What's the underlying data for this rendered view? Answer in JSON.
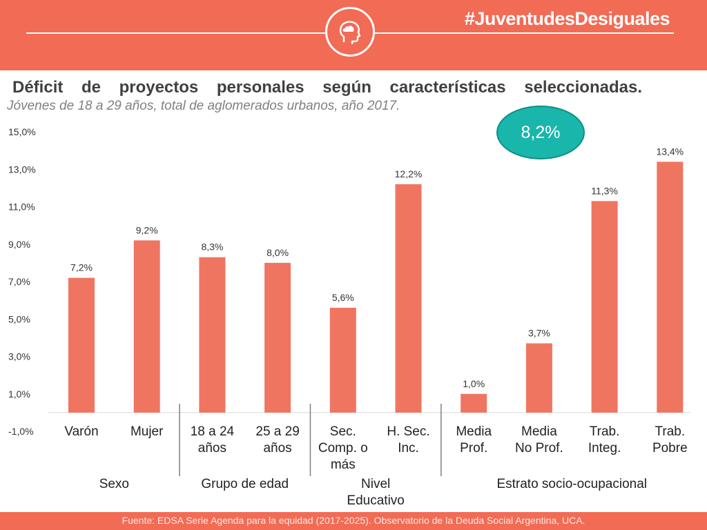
{
  "header": {
    "hashtag": "#JuventudesDesiguales",
    "icon": "head-cloud-icon"
  },
  "title": "Déficit de proyectos personales según características seleccionadas.",
  "subtitle": "Jóvenes de 18 a 29 años, total de aglomerados urbanos, año 2017.",
  "callout": "8,2%",
  "footer": "Fuente: EDSA Serie Agenda para la equidad (2017-2025). Observatorio de la Deuda Social Argentina, UCA.",
  "colors": {
    "accent": "#f26b55",
    "bar": "#f07560",
    "callout": "#19b6ab"
  },
  "chart_data": {
    "type": "bar",
    "ylim": [
      -1.0,
      15.0
    ],
    "yticks": [
      -1.0,
      1.0,
      3.0,
      5.0,
      7.0,
      9.0,
      11.0,
      13.0,
      15.0
    ],
    "ytick_labels": [
      "-1,0%",
      "1,0%",
      "3,0%",
      "5,0%",
      "7,0%",
      "9,0%",
      "11,0%",
      "13,0%",
      "15,0%"
    ],
    "categories": [
      [
        "Varón"
      ],
      [
        "Mujer"
      ],
      [
        "18 a 24",
        "años"
      ],
      [
        "25 a 29",
        "años"
      ],
      [
        "Sec.",
        "Comp. o",
        "más"
      ],
      [
        "H. Sec.",
        "Inc."
      ],
      [
        "Media",
        "Prof."
      ],
      [
        "Media",
        "No Prof."
      ],
      [
        "Trab.",
        "Integ."
      ],
      [
        "Trab.",
        "Pobre"
      ]
    ],
    "values": [
      7.2,
      9.2,
      8.3,
      8.0,
      5.6,
      12.2,
      1.0,
      3.7,
      11.3,
      13.4
    ],
    "data_labels": [
      "7,2%",
      "9,2%",
      "8,3%",
      "8,0%",
      "5,6%",
      "12,2%",
      "1,0%",
      "3,7%",
      "11,3%",
      "13,4%"
    ],
    "groups": [
      {
        "label": [
          "Sexo"
        ],
        "start": 0,
        "end": 1
      },
      {
        "label": [
          "Grupo de edad"
        ],
        "start": 2,
        "end": 3
      },
      {
        "label": [
          "Nivel",
          "Educativo"
        ],
        "start": 4,
        "end": 5
      },
      {
        "label": [
          "Estrato socio-ocupacional"
        ],
        "start": 6,
        "end": 9
      }
    ]
  }
}
